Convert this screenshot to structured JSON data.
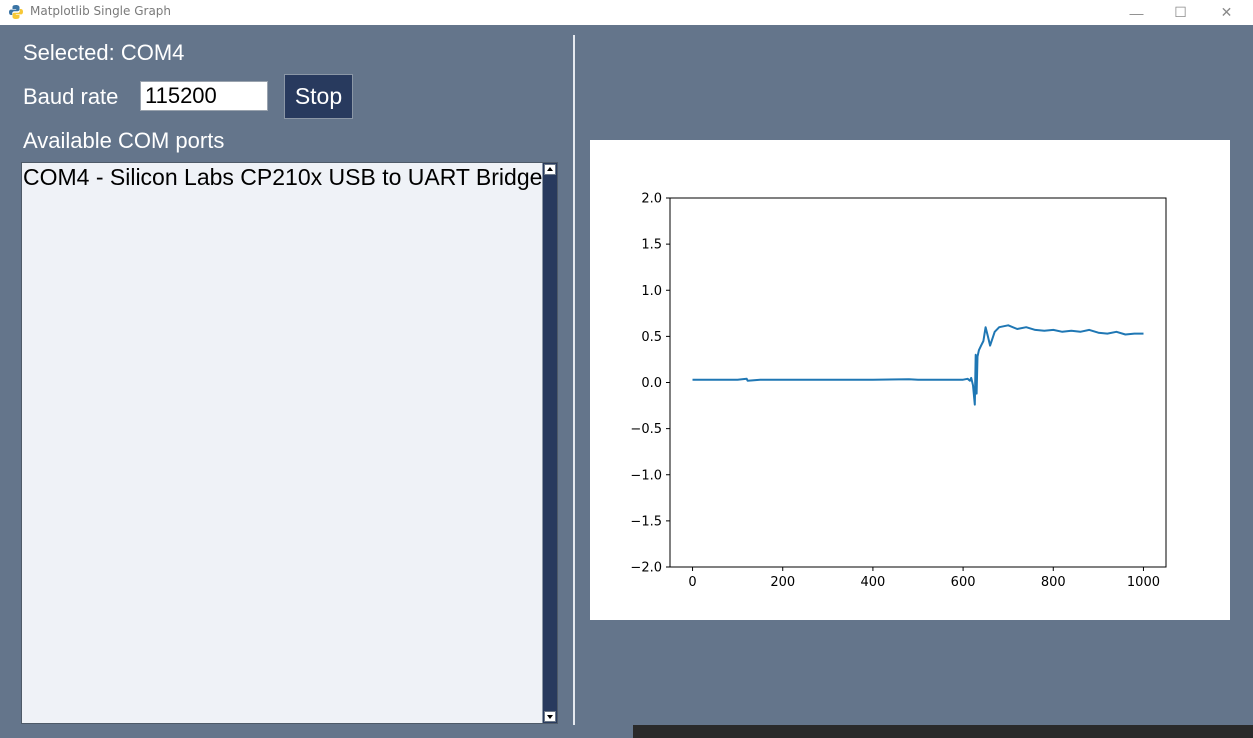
{
  "window": {
    "title": "Matplotlib Single Graph",
    "minimize_glyph": "—",
    "maximize_glyph": "☐",
    "close_glyph": "✕"
  },
  "left_panel": {
    "selected_label": "Selected: COM4",
    "baud_label": "Baud rate",
    "baud_value": "115200",
    "stop_label": "Stop",
    "ports_label": "Available COM ports",
    "ports": [
      "COM4 - Silicon Labs CP210x USB to UART Bridge"
    ]
  },
  "chart_data": {
    "type": "line",
    "title": "",
    "xlabel": "",
    "ylabel": "",
    "xlim": [
      -50,
      1050
    ],
    "ylim": [
      -2.0,
      2.0
    ],
    "x_ticks": [
      0,
      200,
      400,
      600,
      800,
      1000
    ],
    "x_tick_labels": [
      "0",
      "200",
      "400",
      "600",
      "800",
      "1000"
    ],
    "y_ticks": [
      2.0,
      1.5,
      1.0,
      0.5,
      0.0,
      -0.5,
      -1.0,
      -1.5,
      -2.0
    ],
    "y_tick_labels": [
      "2.0",
      "1.5",
      "1.0",
      "0.5",
      "0.0",
      "−0.5",
      "−1.0",
      "−1.5",
      "−2.0"
    ],
    "grid": false,
    "series": [
      {
        "color": "#1f77b4",
        "x": [
          0,
          50,
          100,
          120,
          122,
          150,
          200,
          300,
          400,
          480,
          500,
          550,
          600,
          610,
          615,
          618,
          622,
          626,
          628,
          630,
          632,
          635,
          640,
          645,
          650,
          655,
          660,
          670,
          680,
          700,
          720,
          740,
          760,
          780,
          800,
          820,
          840,
          860,
          880,
          900,
          920,
          940,
          960,
          980,
          1000
        ],
        "y": [
          0.03,
          0.03,
          0.03,
          0.04,
          0.02,
          0.03,
          0.03,
          0.03,
          0.03,
          0.035,
          0.03,
          0.03,
          0.03,
          0.04,
          0.02,
          0.05,
          -0.03,
          -0.24,
          0.3,
          -0.12,
          0.28,
          0.35,
          0.4,
          0.45,
          0.6,
          0.5,
          0.4,
          0.55,
          0.6,
          0.62,
          0.58,
          0.6,
          0.57,
          0.56,
          0.57,
          0.55,
          0.56,
          0.55,
          0.57,
          0.54,
          0.53,
          0.55,
          0.52,
          0.53,
          0.53
        ]
      }
    ]
  }
}
